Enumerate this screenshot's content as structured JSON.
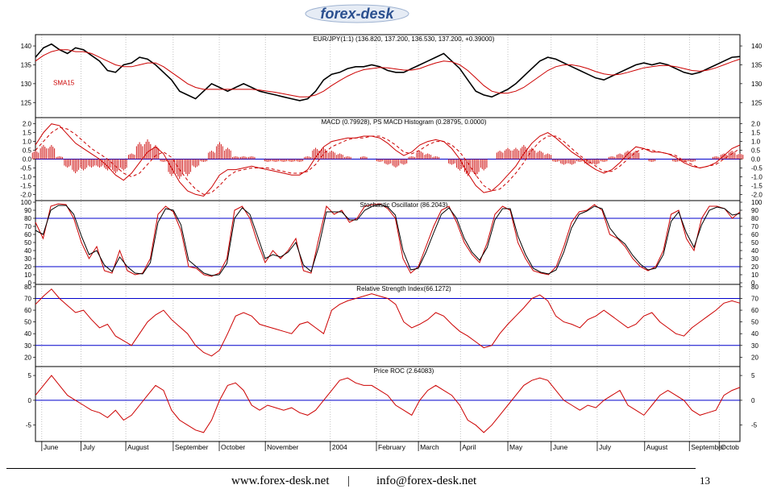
{
  "header": {
    "logo_text": "forex-desk"
  },
  "footer": {
    "website": "www.forex-desk.net",
    "separator": "|",
    "email": "info@forex-desk.net",
    "page_number": "13"
  },
  "colors": {
    "price": "#000000",
    "indicator": "#cc0000",
    "reference": "#0000cc",
    "logo": "#2a4f8f"
  },
  "chart_data": [
    {
      "type": "line",
      "title": "EUR/JPY(1:1) (136.820, 137.200, 136.530, 137.200, +0.39000)",
      "series": [
        {
          "name": "",
          "values": [
            137,
            139.5,
            140.5,
            139,
            138,
            139.5,
            139,
            137.5,
            136,
            133.5,
            133,
            135,
            135.5,
            137,
            136.5,
            135,
            133,
            131,
            128,
            127,
            126,
            128,
            130,
            129,
            128,
            129,
            130,
            129,
            128,
            127.5,
            127,
            126.5,
            126,
            125.5,
            126,
            128,
            131,
            132.5,
            133,
            134,
            134.5,
            134.5,
            135,
            134.5,
            133.5,
            133,
            133,
            134,
            135,
            136,
            137,
            138,
            136,
            134,
            131,
            128,
            127,
            126.5,
            127.5,
            128.5,
            130,
            132,
            134,
            136,
            137,
            136.5,
            135.5,
            134.5,
            133.5,
            132.5,
            131.5,
            131,
            132,
            133,
            134,
            135,
            135.5,
            135,
            135.5,
            135,
            134,
            133,
            132.5,
            133,
            134,
            135,
            136,
            137,
            137.2
          ]
        },
        {
          "name": "SMA15",
          "values": [
            136,
            137.5,
            138.5,
            139,
            139,
            138.5,
            138.5,
            138,
            137,
            136,
            135,
            134.5,
            134.5,
            135,
            135.5,
            135.5,
            134.5,
            133,
            131.5,
            130,
            129,
            128.5,
            128.5,
            128.5,
            128.5,
            128.5,
            128.5,
            128.5,
            128.3,
            128,
            127.7,
            127.3,
            126.9,
            126.5,
            126.5,
            127,
            128,
            129.5,
            130.8,
            132,
            133,
            133.7,
            134,
            134.3,
            134.2,
            133.9,
            133.6,
            133.6,
            134,
            134.8,
            135.5,
            136,
            135.8,
            135,
            133.5,
            131.5,
            129.5,
            128,
            127.5,
            127.5,
            128,
            129,
            130.5,
            132,
            133.5,
            134.5,
            135,
            135,
            134.6,
            134,
            133.2,
            132.6,
            132.3,
            132.5,
            133,
            133.6,
            134.2,
            134.5,
            134.8,
            134.8,
            134.5,
            134,
            133.5,
            133.3,
            133.6,
            134.2,
            135,
            135.8,
            136.5
          ]
        }
      ],
      "ylim": [
        121,
        143
      ],
      "yticks": [
        125,
        130,
        135,
        140
      ],
      "annotation": "SMA15"
    },
    {
      "type": "line",
      "title": "MACD (0.79928), PS MACD Histogram (0.28795, 0.0000)",
      "series": [
        {
          "name": "",
          "values": [
            0.8,
            1.5,
            2,
            1.9,
            1.4,
            0.9,
            0.6,
            0.3,
            0,
            -0.4,
            -0.9,
            -1.2,
            -0.8,
            -0.2,
            0.4,
            0.7,
            0.3,
            -0.5,
            -1.3,
            -1.8,
            -2,
            -2.1,
            -1.6,
            -0.9,
            -0.6,
            -0.6,
            -0.5,
            -0.4,
            -0.5,
            -0.6,
            -0.7,
            -0.8,
            -0.9,
            -0.9,
            -0.6,
            0.1,
            0.7,
            1,
            1.1,
            1.2,
            1.2,
            1.3,
            1.3,
            1.2,
            0.9,
            0.5,
            0.2,
            0.4,
            0.8,
            1,
            1.1,
            1,
            0.6,
            0,
            -0.8,
            -1.5,
            -1.9,
            -1.8,
            -1.4,
            -0.9,
            -0.4,
            0.3,
            0.9,
            1.3,
            1.5,
            1.2,
            0.8,
            0.4,
            0.1,
            -0.3,
            -0.6,
            -0.8,
            -0.6,
            -0.2,
            0.3,
            0.7,
            0.6,
            0.4,
            0.4,
            0.3,
            0.1,
            -0.2,
            -0.4,
            -0.5,
            -0.4,
            -0.2,
            0.2,
            0.6,
            0.8
          ]
        },
        {
          "name": "",
          "values": [
            0.5,
            1,
            1.5,
            1.8,
            1.7,
            1.4,
            1,
            0.6,
            0.3,
            0,
            -0.4,
            -0.8,
            -1,
            -0.8,
            -0.3,
            0.2,
            0.4,
            0.1,
            -0.6,
            -1.2,
            -1.7,
            -2,
            -1.9,
            -1.5,
            -1,
            -0.7,
            -0.6,
            -0.5,
            -0.5,
            -0.5,
            -0.6,
            -0.7,
            -0.8,
            -0.8,
            -0.7,
            -0.3,
            0.3,
            0.7,
            0.9,
            1.1,
            1.2,
            1.2,
            1.3,
            1.3,
            1.1,
            0.8,
            0.4,
            0.3,
            0.5,
            0.8,
            1,
            1,
            0.8,
            0.4,
            -0.2,
            -0.9,
            -1.5,
            -1.8,
            -1.7,
            -1.3,
            -0.8,
            -0.2,
            0.5,
            1,
            1.3,
            1.3,
            1,
            0.6,
            0.2,
            -0.1,
            -0.4,
            -0.7,
            -0.7,
            -0.4,
            0,
            0.4,
            0.6,
            0.5,
            0.4,
            0.3,
            0.2,
            -0.1,
            -0.3,
            -0.5,
            -0.4,
            -0.3,
            0,
            0.3,
            0.6
          ]
        }
      ],
      "ylim": [
        -2.35,
        2.35
      ],
      "yticks": [
        "2.0",
        "1.5",
        "1.0",
        "0.5",
        "0.0",
        "-0.5",
        "-1.0",
        "-1.5",
        "-2.0"
      ]
    },
    {
      "type": "line",
      "title": "Stochastic Oscillator (86.2043)",
      "series": [
        {
          "name": "",
          "values": [
            75,
            55,
            95,
            98,
            97,
            80,
            50,
            30,
            45,
            15,
            12,
            40,
            15,
            10,
            12,
            30,
            85,
            95,
            88,
            65,
            20,
            18,
            10,
            8,
            12,
            30,
            90,
            95,
            80,
            50,
            25,
            40,
            30,
            40,
            55,
            15,
            12,
            55,
            95,
            85,
            90,
            75,
            80,
            95,
            97,
            98,
            92,
            80,
            30,
            12,
            20,
            45,
            70,
            90,
            95,
            75,
            50,
            35,
            25,
            50,
            85,
            95,
            90,
            50,
            30,
            15,
            12,
            10,
            20,
            45,
            75,
            88,
            90,
            97,
            90,
            60,
            55,
            45,
            30,
            20,
            15,
            20,
            40,
            85,
            90,
            55,
            40,
            80,
            95,
            95,
            92,
            80,
            88
          ]
        },
        {
          "name": "",
          "values": [
            65,
            60,
            90,
            96,
            96,
            85,
            58,
            35,
            40,
            22,
            14,
            32,
            20,
            12,
            11,
            25,
            75,
            92,
            90,
            72,
            28,
            20,
            12,
            9,
            10,
            24,
            80,
            93,
            85,
            58,
            30,
            35,
            32,
            38,
            50,
            22,
            14,
            45,
            88,
            88,
            88,
            78,
            78,
            90,
            95,
            97,
            94,
            84,
            40,
            16,
            18,
            38,
            62,
            85,
            93,
            80,
            55,
            38,
            28,
            44,
            78,
            92,
            92,
            58,
            35,
            18,
            13,
            11,
            16,
            38,
            68,
            85,
            89,
            95,
            92,
            68,
            56,
            48,
            34,
            23,
            16,
            18,
            35,
            76,
            88,
            62,
            44,
            72,
            90,
            94,
            92,
            84,
            86
          ]
        }
      ],
      "ylim": [
        -2,
        102
      ],
      "yticks": [
        0,
        10,
        20,
        30,
        40,
        50,
        60,
        70,
        80,
        90,
        100
      ],
      "reference_lines": [
        20,
        80
      ]
    },
    {
      "type": "line",
      "title": "Relative Strength Index(66.1272)",
      "series": [
        {
          "name": "",
          "values": [
            65,
            72,
            78,
            70,
            64,
            58,
            60,
            52,
            45,
            48,
            38,
            34,
            30,
            40,
            50,
            56,
            60,
            52,
            46,
            40,
            30,
            24,
            21,
            26,
            40,
            55,
            58,
            55,
            48,
            46,
            44,
            42,
            40,
            48,
            50,
            45,
            40,
            60,
            65,
            68,
            70,
            72,
            74,
            72,
            70,
            65,
            50,
            45,
            48,
            52,
            58,
            55,
            48,
            42,
            38,
            33,
            28,
            30,
            40,
            48,
            55,
            62,
            70,
            73,
            68,
            55,
            50,
            48,
            45,
            52,
            55,
            60,
            55,
            50,
            45,
            48,
            55,
            58,
            50,
            45,
            40,
            38,
            45,
            50,
            55,
            60,
            66,
            68,
            66
          ]
        }
      ],
      "ylim": [
        12,
        82
      ],
      "yticks": [
        20,
        30,
        40,
        50,
        60,
        70,
        80
      ],
      "reference_lines": [
        30,
        70
      ]
    },
    {
      "type": "line",
      "title": "Price ROC (2.64083)",
      "series": [
        {
          "name": "",
          "values": [
            1,
            3,
            5,
            3,
            1,
            0,
            -1,
            -2,
            -2.5,
            -3.5,
            -2,
            -4,
            -3,
            -1,
            1,
            3,
            2,
            -2,
            -4,
            -5,
            -6,
            -6.5,
            -4,
            0,
            3,
            3.5,
            2,
            -1,
            -2,
            -1,
            -1.5,
            -2,
            -1.5,
            -2.5,
            -3,
            -2,
            0,
            2,
            4,
            4.5,
            3.5,
            3,
            3,
            2,
            1,
            -1,
            -2,
            -3,
            0,
            2,
            3,
            2,
            1,
            -1,
            -4,
            -5,
            -6.5,
            -5,
            -3,
            -1,
            1,
            3,
            4,
            4.5,
            4,
            2,
            0,
            -1,
            -2,
            -1,
            -1.5,
            0,
            1,
            2,
            -1,
            -2,
            -3,
            -1,
            1,
            2,
            1,
            0,
            -2,
            -3,
            -2.5,
            -2,
            1,
            2,
            2.6
          ]
        }
      ],
      "ylim": [
        -8.3,
        6.8
      ],
      "yticks": [
        5,
        0,
        -5
      ],
      "reference_lines": [
        0
      ]
    }
  ],
  "x_axis": {
    "labels": [
      "June",
      "July",
      "August",
      "September",
      "October",
      "November",
      "2004",
      "February",
      "March",
      "April",
      "May",
      "June",
      "July",
      "August",
      "September",
      "Octob"
    ],
    "label_positions": [
      0.5,
      3.4,
      6.7,
      10.2,
      13.6,
      17,
      21.8,
      25.2,
      28.3,
      31.4,
      34.9,
      38.1,
      41.5,
      45,
      48.3,
      50.5
    ],
    "range": [
      -0.8,
      51.2
    ]
  }
}
